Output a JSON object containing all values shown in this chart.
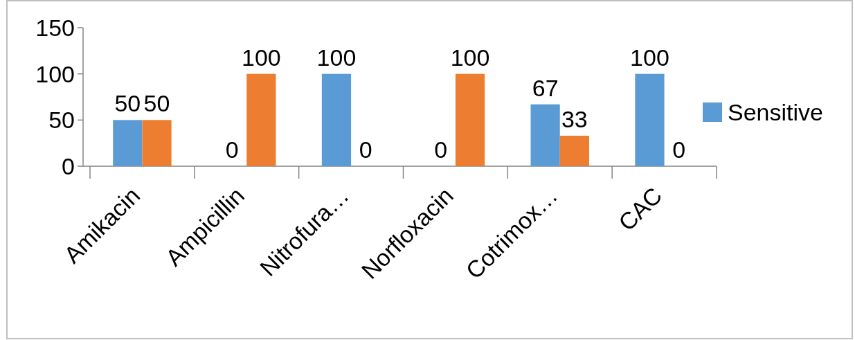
{
  "chart_data": {
    "type": "bar",
    "categories": [
      "Amikacin",
      "Ampicillin",
      "Nitrofura…",
      "Norfloxacin",
      "Cotrimox…",
      "CAC"
    ],
    "series": [
      {
        "name": "Sensitive",
        "color": "#5b9bd5",
        "values": [
          50,
          0,
          100,
          0,
          67,
          100
        ]
      },
      {
        "color": "#ed7d31",
        "values": [
          50,
          100,
          0,
          100,
          33,
          0
        ]
      }
    ],
    "ylim": [
      0,
      150
    ],
    "yticks": [
      0,
      50,
      100,
      150
    ],
    "grid": false,
    "legend": "right",
    "data_labels": true
  }
}
